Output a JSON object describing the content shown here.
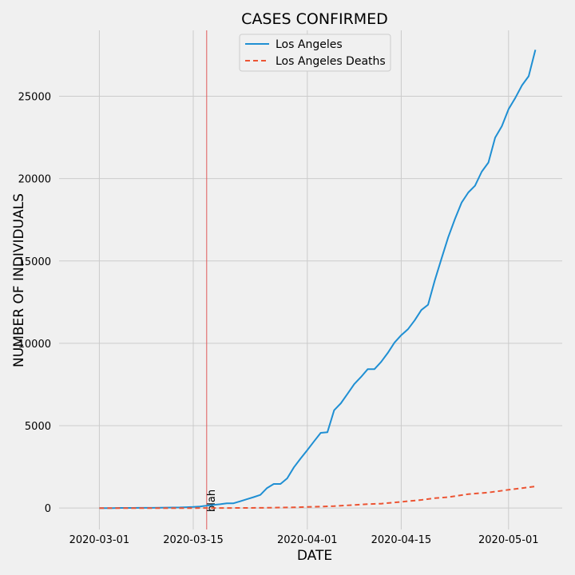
{
  "chart_data": {
    "type": "line",
    "title": "CASES CONFIRMED",
    "xlabel": "DATE",
    "ylabel": "NUMBER OF INDIVIDUALS",
    "x_range": [
      "2020-02-24",
      "2020-05-09"
    ],
    "ylim": [
      -1300,
      29000
    ],
    "grid": true,
    "legend_position": "top-center",
    "x_ticks": [
      "2020-03-01",
      "2020-03-15",
      "2020-04-01",
      "2020-04-15",
      "2020-05-01"
    ],
    "y_ticks": [
      0,
      5000,
      10000,
      15000,
      20000,
      25000
    ],
    "colors": {
      "cases": "#1f8fd3",
      "deaths": "#ec5433",
      "vline": "#e05a5a",
      "grid": "#cbcbcb",
      "background": "#f0f0f0"
    },
    "annotation": {
      "date": "2020-03-17",
      "text": "blah"
    },
    "series": [
      {
        "name": "Los Angeles",
        "style": "solid",
        "points": [
          [
            "2020-03-01",
            1
          ],
          [
            "2020-03-02",
            1
          ],
          [
            "2020-03-03",
            1
          ],
          [
            "2020-03-04",
            7
          ],
          [
            "2020-03-05",
            7
          ],
          [
            "2020-03-06",
            11
          ],
          [
            "2020-03-07",
            13
          ],
          [
            "2020-03-08",
            14
          ],
          [
            "2020-03-09",
            14
          ],
          [
            "2020-03-10",
            17
          ],
          [
            "2020-03-11",
            27
          ],
          [
            "2020-03-12",
            32
          ],
          [
            "2020-03-13",
            40
          ],
          [
            "2020-03-14",
            53
          ],
          [
            "2020-03-15",
            69
          ],
          [
            "2020-03-16",
            94
          ],
          [
            "2020-03-17",
            144
          ],
          [
            "2020-03-18",
            190
          ],
          [
            "2020-03-19",
            231
          ],
          [
            "2020-03-20",
            292
          ],
          [
            "2020-03-21",
            292
          ],
          [
            "2020-03-22",
            409
          ],
          [
            "2020-03-23",
            536
          ],
          [
            "2020-03-24",
            662
          ],
          [
            "2020-03-25",
            799
          ],
          [
            "2020-03-26",
            1216
          ],
          [
            "2020-03-27",
            1465
          ],
          [
            "2020-03-28",
            1465
          ],
          [
            "2020-03-29",
            1804
          ],
          [
            "2020-03-30",
            2474
          ],
          [
            "2020-03-31",
            3011
          ],
          [
            "2020-04-01",
            3518
          ],
          [
            "2020-04-02",
            4045
          ],
          [
            "2020-04-03",
            4566
          ],
          [
            "2020-04-04",
            4605
          ],
          [
            "2020-04-05",
            5940
          ],
          [
            "2020-04-06",
            6360
          ],
          [
            "2020-04-07",
            6936
          ],
          [
            "2020-04-08",
            7530
          ],
          [
            "2020-04-09",
            7955
          ],
          [
            "2020-04-10",
            8430
          ],
          [
            "2020-04-11",
            8430
          ],
          [
            "2020-04-12",
            8873
          ],
          [
            "2020-04-13",
            9420
          ],
          [
            "2020-04-14",
            10047
          ],
          [
            "2020-04-15",
            10496
          ],
          [
            "2020-04-16",
            10854
          ],
          [
            "2020-04-17",
            11391
          ],
          [
            "2020-04-18",
            12021
          ],
          [
            "2020-04-19",
            12341
          ],
          [
            "2020-04-20",
            13816
          ],
          [
            "2020-04-21",
            15140
          ],
          [
            "2020-04-22",
            16435
          ],
          [
            "2020-04-23",
            17537
          ],
          [
            "2020-04-24",
            18545
          ],
          [
            "2020-04-25",
            19159
          ],
          [
            "2020-04-26",
            19567
          ],
          [
            "2020-04-27",
            20417
          ],
          [
            "2020-04-28",
            20976
          ],
          [
            "2020-04-29",
            22485
          ],
          [
            "2020-04-30",
            23182
          ],
          [
            "2020-05-01",
            24215
          ],
          [
            "2020-05-02",
            24894
          ],
          [
            "2020-05-03",
            25662
          ],
          [
            "2020-05-04",
            26217
          ],
          [
            "2020-05-05",
            27815
          ]
        ]
      },
      {
        "name": "Los Angeles Deaths",
        "style": "dashed",
        "points": [
          [
            "2020-03-01",
            0
          ],
          [
            "2020-03-05",
            0
          ],
          [
            "2020-03-10",
            1
          ],
          [
            "2020-03-15",
            1
          ],
          [
            "2020-03-20",
            4
          ],
          [
            "2020-03-25",
            13
          ],
          [
            "2020-03-30",
            44
          ],
          [
            "2020-04-01",
            65
          ],
          [
            "2020-04-05",
            117
          ],
          [
            "2020-04-10",
            241
          ],
          [
            "2020-04-12",
            265
          ],
          [
            "2020-04-15",
            376
          ],
          [
            "2020-04-18",
            495
          ],
          [
            "2020-04-20",
            600
          ],
          [
            "2020-04-22",
            663
          ],
          [
            "2020-04-25",
            848
          ],
          [
            "2020-04-28",
            947
          ],
          [
            "2020-05-01",
            1111
          ],
          [
            "2020-05-03",
            1209
          ],
          [
            "2020-05-05",
            1313
          ]
        ]
      }
    ]
  }
}
